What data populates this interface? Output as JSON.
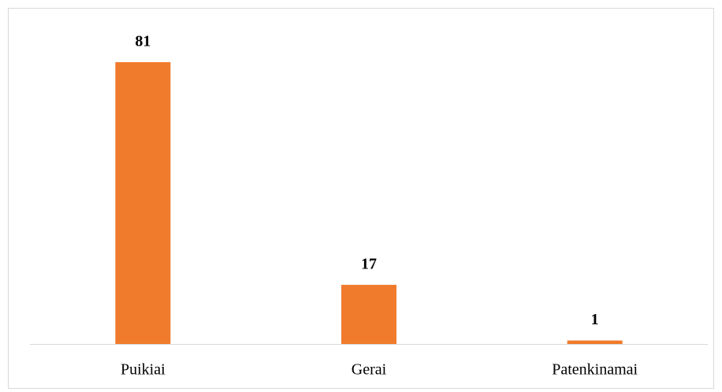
{
  "chart_data": {
    "type": "bar",
    "categories": [
      "Puikiai",
      "Gerai",
      "Patenkinamai"
    ],
    "values": [
      81,
      17,
      1
    ],
    "color": "#f07b2c"
  }
}
